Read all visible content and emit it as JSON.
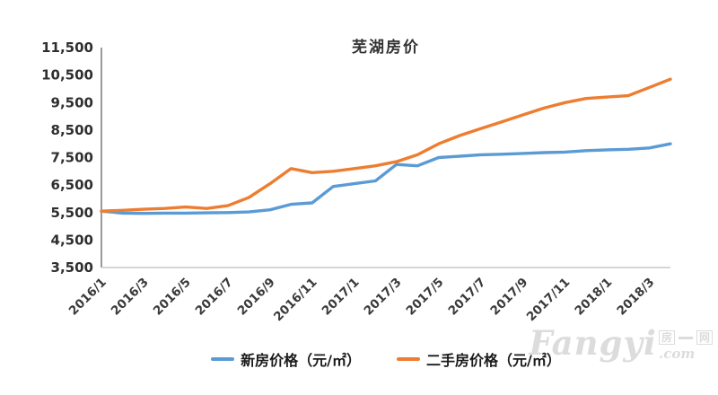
{
  "title": "芜湖房价",
  "chart_data": {
    "type": "line",
    "x": [
      "2016/1",
      "2016/2",
      "2016/3",
      "2016/4",
      "2016/5",
      "2016/6",
      "2016/7",
      "2016/8",
      "2016/9",
      "2016/10",
      "2016/11",
      "2016/12",
      "2017/1",
      "2017/2",
      "2017/3",
      "2017/4",
      "2017/5",
      "2017/6",
      "2017/7",
      "2017/8",
      "2017/9",
      "2017/10",
      "2017/11",
      "2017/12",
      "2018/1",
      "2018/2",
      "2018/3",
      "2018/4"
    ],
    "x_tick_every": 2,
    "series": [
      {
        "id": "new-house",
        "name": "新房价格（元/㎡）",
        "color": "#5B9BD5",
        "values": [
          5550,
          5480,
          5470,
          5480,
          5480,
          5490,
          5500,
          5520,
          5600,
          5800,
          5850,
          6450,
          6550,
          6650,
          7250,
          7200,
          7500,
          7550,
          7600,
          7620,
          7650,
          7680,
          7700,
          7750,
          7780,
          7800,
          7850,
          8000
        ]
      },
      {
        "id": "second-hand",
        "name": "二手房价格（元/㎡）",
        "color": "#ED7D31",
        "values": [
          5550,
          5580,
          5620,
          5650,
          5700,
          5650,
          5750,
          6050,
          6550,
          7100,
          6950,
          7000,
          7100,
          7200,
          7350,
          7600,
          8000,
          8300,
          8550,
          8800,
          9050,
          9300,
          9500,
          9650,
          9700,
          9750,
          10050,
          10350
        ]
      }
    ],
    "title": "芜湖房价",
    "xlabel": "",
    "ylabel": "",
    "ylim": [
      3500,
      11500
    ],
    "ytick_values": [
      3500,
      4500,
      5500,
      6500,
      7500,
      8500,
      9500,
      10500,
      11500
    ],
    "ytick_labels": [
      "3,500",
      "4,500",
      "5,500",
      "6,500",
      "7,500",
      "8,500",
      "9,500",
      "10,500",
      "11,500"
    ],
    "grid": false,
    "legend_position": "bottom",
    "axis_color": "#6f6f6f",
    "baseline_color": "#c9c9c9"
  },
  "watermark": {
    "main": "Fangyi",
    "char1": "房",
    "char2": "网",
    "com": ".com"
  }
}
